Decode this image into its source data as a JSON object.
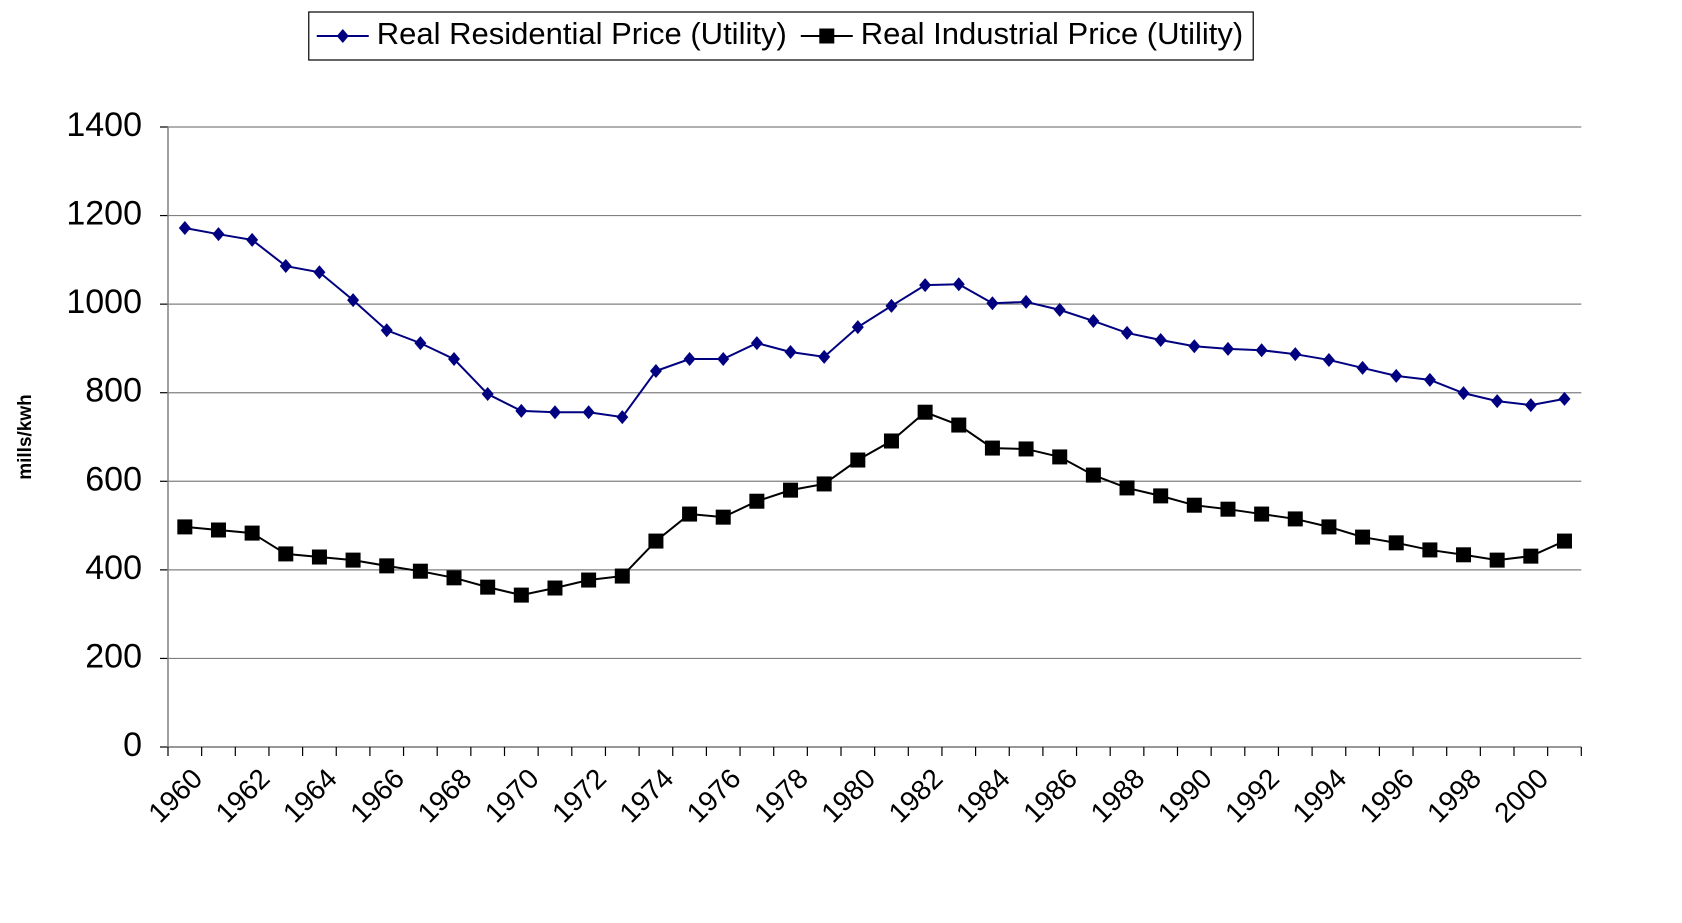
{
  "chart_data": {
    "type": "line",
    "y_label": "mills/kwh",
    "categories": [
      "1960",
      null,
      "1962",
      null,
      "1964",
      null,
      "1966",
      null,
      "1968",
      null,
      "1970",
      null,
      "1972",
      null,
      "1974",
      null,
      "1976",
      null,
      "1978",
      null,
      "1980",
      null,
      "1982",
      null,
      "1984",
      null,
      "1986",
      null,
      "1988",
      null,
      "1990",
      null,
      "1992",
      null,
      "1994",
      null,
      "1996",
      null,
      "1998",
      null,
      "2000",
      null
    ],
    "series": [
      {
        "name": "Real Residential Price (Utility)",
        "color": "#000080",
        "marker": "diamond",
        "values": [
          1172,
          1158,
          1145,
          1086,
          1072,
          1009,
          941,
          912,
          876,
          797,
          759,
          756,
          756,
          745,
          849,
          876,
          876,
          912,
          892,
          881,
          948,
          996,
          1043,
          1045,
          1002,
          1005,
          987,
          962,
          935,
          919,
          905,
          899,
          896,
          887,
          874,
          856,
          838,
          829,
          799,
          781,
          772,
          786
        ]
      },
      {
        "name": "Real Industrial Price (Utility)",
        "color": "#000000",
        "marker": "square",
        "values": [
          497,
          490,
          483,
          436,
          429,
          422,
          409,
          397,
          382,
          361,
          343,
          359,
          377,
          386,
          465,
          526,
          519,
          555,
          580,
          594,
          648,
          691,
          756,
          727,
          675,
          673,
          655,
          614,
          585,
          567,
          546,
          537,
          526,
          515,
          497,
          474,
          461,
          445,
          434,
          422,
          431,
          465
        ]
      }
    ],
    "ylim": [
      0,
      1400
    ],
    "yticks": [
      0,
      200,
      400,
      600,
      800,
      1000,
      1200,
      1400
    ],
    "grid": true,
    "legend": "top"
  }
}
